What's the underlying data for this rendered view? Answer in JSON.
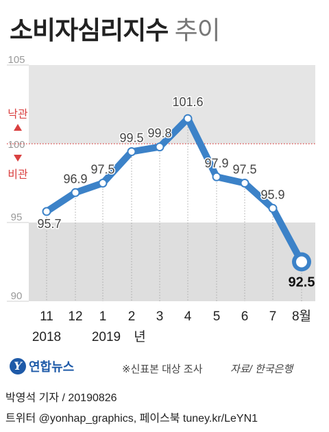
{
  "header": {
    "title_main": "소비자심리지수",
    "title_sub": "추이"
  },
  "chart_data": {
    "type": "line",
    "title": "소비자심리지수 추이",
    "categories": [
      "11",
      "12",
      "1",
      "2",
      "3",
      "4",
      "5",
      "6",
      "7",
      "8월"
    ],
    "year_labels": [
      "2018",
      "2019",
      "년"
    ],
    "series": [
      {
        "values": [
          95.7,
          96.9,
          97.5,
          99.5,
          99.8,
          101.6,
          97.9,
          97.5,
          95.9,
          92.5
        ]
      }
    ],
    "value_labels": [
      "95.7",
      "96.9",
      "97.5",
      "99.5",
      "99.8",
      "101.6",
      "97.9",
      "97.5",
      "95.9",
      "92.5"
    ],
    "ylim": [
      90,
      105
    ],
    "yticks": [
      "90",
      "95",
      "100",
      "105"
    ],
    "reference_line": {
      "value": 100,
      "upper_label": "낙관",
      "lower_label": "비관"
    },
    "line_color": "#3c82c8",
    "band_upper_color": "#e5e5e5",
    "band_lower_color": "#dedede",
    "reference_color": "#d94040"
  },
  "footer": {
    "logo_mark": "Y",
    "logo_text": "연합뉴스",
    "note": "※신표본 대상 조사",
    "source": "자료/ 한국은행",
    "credit_line1": "박영석 기자 /  20190826",
    "credit_line2": "트위터 @yonhap_graphics, 페이스북 tuney.kr/LeYN1"
  }
}
